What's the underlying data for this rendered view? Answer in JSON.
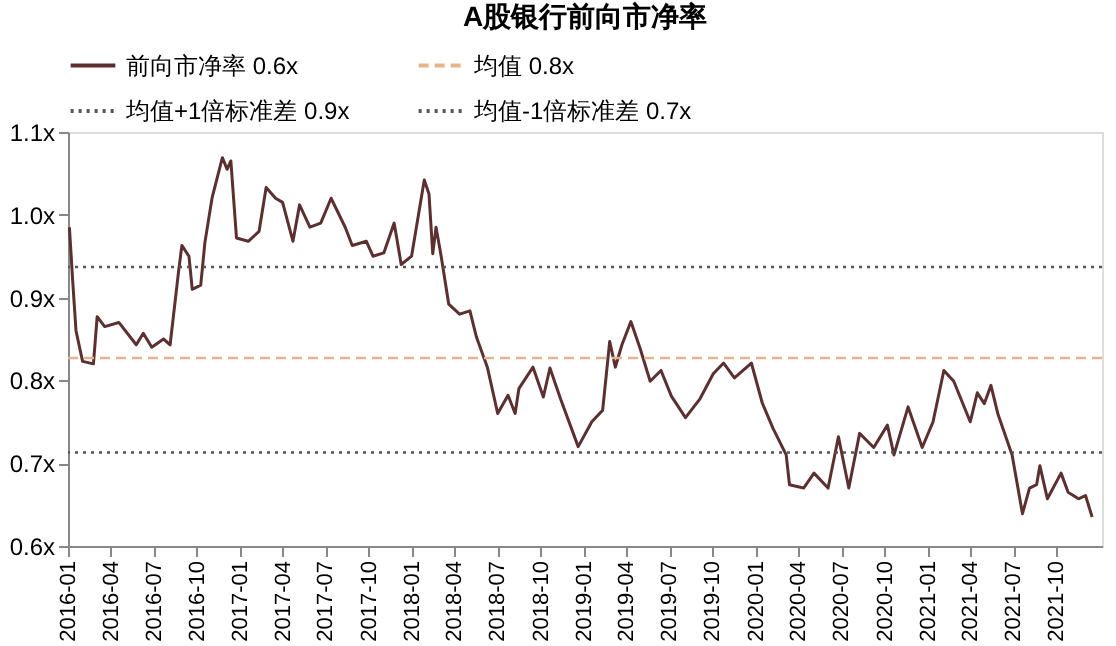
{
  "chart_data": {
    "type": "line",
    "title": "A股银行前向市净率",
    "x": [
      "2016-01-04",
      "2016-01-11",
      "2016-01-18",
      "2016-02-01",
      "2016-02-24",
      "2016-03-03",
      "2016-03-19",
      "2016-04-18",
      "2016-05-25",
      "2016-06-09",
      "2016-06-27",
      "2016-07-22",
      "2016-08-05",
      "2016-08-23",
      "2016-08-30",
      "2016-09-14",
      "2016-09-21",
      "2016-10-09",
      "2016-10-18",
      "2016-11-02",
      "2016-11-24",
      "2016-12-04",
      "2016-12-12",
      "2016-12-24",
      "2017-01-18",
      "2017-02-10",
      "2017-02-25",
      "2017-03-17",
      "2017-04-01",
      "2017-04-23",
      "2017-05-07",
      "2017-05-29",
      "2017-06-21",
      "2017-07-13",
      "2017-08-12",
      "2017-08-27",
      "2017-09-26",
      "2017-10-10",
      "2017-11-02",
      "2017-11-24",
      "2017-12-09",
      "2017-12-31",
      "2018-01-27",
      "2018-02-06",
      "2018-02-14",
      "2018-02-21",
      "2018-03-03",
      "2018-03-20",
      "2018-04-12",
      "2018-05-04",
      "2018-05-18",
      "2018-06-10",
      "2018-07-02",
      "2018-07-24",
      "2018-08-08",
      "2018-08-16",
      "2018-09-15",
      "2018-10-07",
      "2018-10-21",
      "2018-11-13",
      "2018-12-20",
      "2019-01-18",
      "2019-02-10",
      "2019-02-25",
      "2019-03-09",
      "2019-03-23",
      "2019-04-11",
      "2019-05-01",
      "2019-05-22",
      "2019-06-14",
      "2019-07-06",
      "2019-08-05",
      "2019-09-04",
      "2019-10-03",
      "2019-10-25",
      "2019-11-17",
      "2019-12-23",
      "2020-01-15",
      "2020-02-07",
      "2020-03-06",
      "2020-03-13",
      "2020-04-12",
      "2020-05-04",
      "2020-06-03",
      "2020-06-25",
      "2020-07-17",
      "2020-08-09",
      "2020-09-08",
      "2020-10-07",
      "2020-10-21",
      "2020-11-20",
      "2020-12-20",
      "2021-01-12",
      "2021-02-04",
      "2021-02-25",
      "2021-04-01",
      "2021-04-16",
      "2021-05-01",
      "2021-05-15",
      "2021-05-30",
      "2021-06-29",
      "2021-07-21",
      "2021-08-05",
      "2021-08-20",
      "2021-08-27",
      "2021-09-12",
      "2021-10-11",
      "2021-10-26",
      "2021-11-17",
      "2021-12-02",
      "2021-12-16"
    ],
    "series": [
      {
        "name": "前向市净率 0.6x",
        "color": "#5c3030",
        "values": [
          0.985,
          0.92,
          0.86,
          0.823,
          0.82,
          0.877,
          0.865,
          0.87,
          0.843,
          0.857,
          0.84,
          0.85,
          0.843,
          0.932,
          0.963,
          0.95,
          0.91,
          0.915,
          0.967,
          1.02,
          1.069,
          1.055,
          1.065,
          0.972,
          0.968,
          0.98,
          1.033,
          1.02,
          1.015,
          0.968,
          1.012,
          0.985,
          0.99,
          1.02,
          0.985,
          0.963,
          0.968,
          0.95,
          0.954,
          0.99,
          0.94,
          0.95,
          1.042,
          1.025,
          0.953,
          0.985,
          0.953,
          0.892,
          0.88,
          0.884,
          0.852,
          0.816,
          0.76,
          0.782,
          0.76,
          0.79,
          0.816,
          0.78,
          0.815,
          0.777,
          0.72,
          0.75,
          0.764,
          0.847,
          0.816,
          0.843,
          0.871,
          0.838,
          0.799,
          0.812,
          0.781,
          0.755,
          0.777,
          0.808,
          0.821,
          0.803,
          0.821,
          0.773,
          0.742,
          0.71,
          0.674,
          0.67,
          0.688,
          0.67,
          0.732,
          0.67,
          0.736,
          0.719,
          0.746,
          0.71,
          0.768,
          0.719,
          0.75,
          0.812,
          0.799,
          0.75,
          0.785,
          0.772,
          0.794,
          0.759,
          0.71,
          0.639,
          0.67,
          0.674,
          0.697,
          0.657,
          0.688,
          0.665,
          0.657,
          0.661,
          0.635
        ]
      }
    ],
    "ref_lines": [
      {
        "axis": "y",
        "value": 0.827,
        "label": "均值 0.8x",
        "color": "#e6b48c",
        "line_style": "dashed"
      },
      {
        "axis": "y",
        "value": 0.937,
        "label": "均值+1倍标准差 0.9x",
        "color": "#555555",
        "line_style": "dotted"
      },
      {
        "axis": "y",
        "value": 0.713,
        "label": "均值-1倍标准差 0.7x",
        "color": "#555555",
        "line_style": "dotted"
      }
    ],
    "xlim": [
      "2016-01-01",
      "2022-01-06"
    ],
    "xticks": [
      "2016-01",
      "2016-04",
      "2016-07",
      "2016-10",
      "2017-01",
      "2017-04",
      "2017-07",
      "2017-10",
      "2018-01",
      "2018-04",
      "2018-07",
      "2018-10",
      "2019-01",
      "2019-04",
      "2019-07",
      "2019-10",
      "2020-01",
      "2020-04",
      "2020-07",
      "2020-10",
      "2021-01",
      "2021-04",
      "2021-07",
      "2021-10"
    ],
    "ylim": [
      0.6,
      1.1
    ],
    "yticks": [
      {
        "value": 0.6,
        "label": "0.6x"
      },
      {
        "value": 0.7,
        "label": "0.7x"
      },
      {
        "value": 0.8,
        "label": "0.8x"
      },
      {
        "value": 0.9,
        "label": "0.9x"
      },
      {
        "value": 1.0,
        "label": "1.0x"
      },
      {
        "value": 1.1,
        "label": "1.1x"
      }
    ],
    "grid": false,
    "legend": "top",
    "line_style": "solid",
    "marker": "none"
  }
}
